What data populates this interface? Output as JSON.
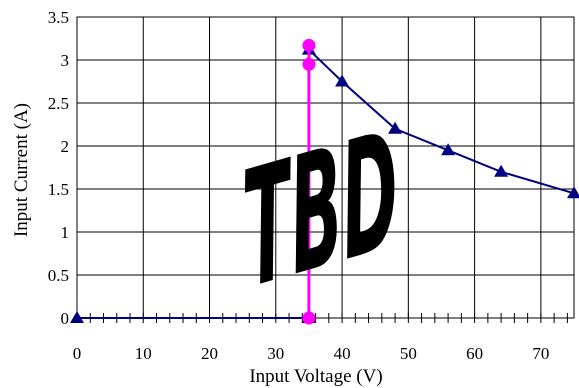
{
  "chart_data": {
    "type": "line",
    "xlabel": "Input Voltage (V)",
    "ylabel": "Input Current (A)",
    "xlim": [
      0,
      75
    ],
    "ylim": [
      0,
      3.5
    ],
    "x_ticks": [
      0,
      10,
      20,
      30,
      40,
      50,
      60,
      70
    ],
    "x_tick_labels": [
      "0",
      "10",
      "20",
      "30",
      "40",
      "50",
      "60",
      "70"
    ],
    "x_minor_step": 2,
    "y_ticks": [
      0,
      0.5,
      1,
      1.5,
      2,
      2.5,
      3,
      3.5
    ],
    "y_tick_labels": [
      "0",
      "0.5",
      "1",
      "1.5",
      "2",
      "2.5",
      "3",
      "3.5"
    ],
    "grid": true,
    "watermark": "TBD",
    "series": [
      {
        "color": "#000080",
        "marker": "triangle",
        "x": [
          0,
          35,
          35,
          40,
          48,
          56,
          64,
          75
        ],
        "y": [
          0,
          0,
          3.12,
          2.75,
          2.2,
          1.95,
          1.7,
          1.45
        ]
      },
      {
        "color": "#ff00ff",
        "marker": "circle",
        "x": [
          35,
          35,
          35
        ],
        "y": [
          0,
          2.95,
          3.17
        ]
      }
    ]
  }
}
